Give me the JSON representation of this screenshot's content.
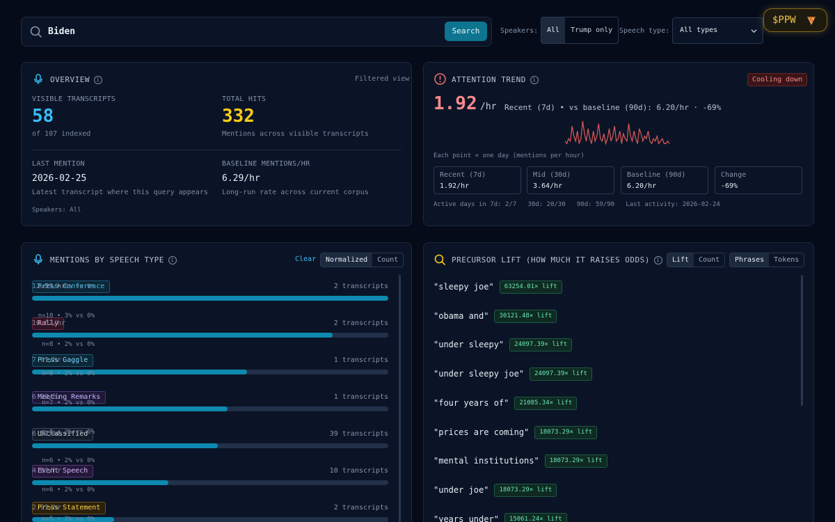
{
  "search": {
    "value": "Biden",
    "button": "Search"
  },
  "filters": {
    "speakers_label": "Speakers:",
    "speakers_options": [
      "All",
      "Trump only"
    ],
    "speech_type_label": "Speech type:",
    "speech_type_value": "All types"
  },
  "ppw": {
    "label": "$PPW"
  },
  "overview": {
    "title": "OVERVIEW",
    "filtered": "Filtered view",
    "visible_label": "VISIBLE TRANSCRIPTS",
    "visible_value": "58",
    "visible_sub": "of 107 indexed",
    "hits_label": "TOTAL HITS",
    "hits_value": "332",
    "hits_sub": "Mentions across visible transcripts",
    "last_label": "LAST MENTION",
    "last_value": "2026-02-25",
    "last_sub": "Latest transcript where this query appears",
    "baseline_label": "BASELINE MENTIONS/HR",
    "baseline_value": "6.29/hr",
    "baseline_sub": "Long-run rate across current corpus",
    "speakers": "Speakers: All"
  },
  "attention": {
    "title": "ATTENTION TREND",
    "badge": "Cooling down",
    "big_value": "1.92",
    "big_unit": "/hr",
    "summary": "Recent (7d) • vs baseline (90d): 6.20/hr · -69%",
    "note": "Each point = one day (mentions per hour)",
    "stats": [
      {
        "label": "Recent (7d)",
        "value": "1.92/hr"
      },
      {
        "label": "Mid (30d)",
        "value": "3.64/hr"
      },
      {
        "label": "Baseline (90d)",
        "value": "6.20/hr"
      },
      {
        "label": "Change",
        "value": "-69%"
      }
    ],
    "footer": "Active days in 7d: 2/7   30d: 20/30   90d: 59/90   Last activity: 2026-02-24",
    "spark_color": "#e05a5a"
  },
  "mentions": {
    "title": "MENTIONS BY SPEECH TYPE",
    "clear": "Clear",
    "toggle": [
      "Normalized",
      "Count"
    ],
    "rows": [
      {
        "label": "Press Conference",
        "rate": "12.59/hr",
        "count": "2 transcripts",
        "fill": 1.0,
        "color": "#38bdf8",
        "bg": "#0c2636",
        "border": "#1e5a7a"
      },
      {
        "label": "Rally",
        "rate": "10.62/hr",
        "count": "2 transcripts",
        "fill": 0.843,
        "color": "#f0a0b8",
        "bg": "#2e1424",
        "border": "#6a2a48"
      },
      {
        "label": "Press Gaggle",
        "rate": "7.61/hr",
        "count": "1 transcripts",
        "fill": 0.604,
        "color": "#7dd3fc",
        "bg": "#0c2636",
        "border": "#1e5a7a"
      },
      {
        "label": "Meeting Remarks",
        "rate": "6.90/hr",
        "count": "1 transcripts",
        "fill": 0.548,
        "color": "#c4b5fd",
        "bg": "#1e1838",
        "border": "#4a3a7a"
      },
      {
        "label": "Unclassified",
        "rate": "6.57/hr",
        "count": "39 transcripts",
        "fill": 0.522,
        "color": "#cbd5e1",
        "bg": "#141c2a",
        "border": "#3a4660"
      },
      {
        "label": "Event Speech",
        "rate": "4.81/hr",
        "count": "10 transcripts",
        "fill": 0.382,
        "color": "#d8b4fe",
        "bg": "#241838",
        "border": "#5a3a7a"
      },
      {
        "label": "Press Statement",
        "rate": "2.91/hr",
        "count": "2 transcripts",
        "fill": 0.231,
        "color": "#fcd34d",
        "bg": "#2a200c",
        "border": "#6a5218"
      }
    ]
  },
  "precursor": {
    "title": "PRECURSOR LIFT (HOW MUCH IT RAISES ODDS)",
    "toggle1": [
      "Lift",
      "Count"
    ],
    "toggle2": [
      "Phrases",
      "Tokens"
    ],
    "rows": [
      {
        "phrase": "\"sleepy joe\"",
        "lift": "63254.01× lift",
        "stat": "n=21 • 6% vs 0%"
      },
      {
        "phrase": "\"obama and\"",
        "lift": "30121.48× lift",
        "stat": "n=10 • 3% vs 0%"
      },
      {
        "phrase": "\"under sleepy\"",
        "lift": "24097.39× lift",
        "stat": "n=8 • 2% vs 0%"
      },
      {
        "phrase": "\"under sleepy joe\"",
        "lift": "24097.39× lift",
        "stat": "n=8 • 2% vs 0%"
      },
      {
        "phrase": "\"four years of\"",
        "lift": "21085.34× lift",
        "stat": "n=7 • 2% vs 0%"
      },
      {
        "phrase": "\"prices are coming\"",
        "lift": "18073.29× lift",
        "stat": "n=6 • 2% vs 0%"
      },
      {
        "phrase": "\"mental institutions\"",
        "lift": "18073.29× lift",
        "stat": "n=6 • 2% vs 0%"
      },
      {
        "phrase": "\"under joe\"",
        "lift": "18073.29× lift",
        "stat": "n=6 • 2% vs 0%"
      },
      {
        "phrase": "\"years under\"",
        "lift": "15061.24× lift",
        "stat": "n=5 • 2% vs 0%"
      }
    ]
  }
}
